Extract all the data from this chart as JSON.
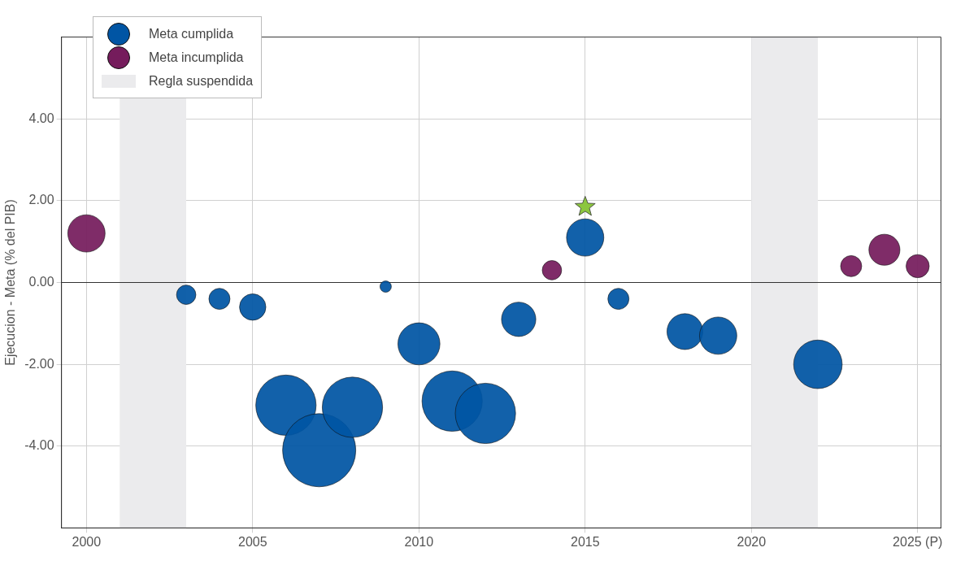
{
  "chart_data": {
    "type": "bubble",
    "ylabel": "Ejecucion - Meta (% del PIB)",
    "xlim": [
      1999.25,
      2025.7
    ],
    "xticks": [
      2000,
      2005,
      2010,
      2015,
      2020,
      {
        "value": 2025,
        "label": "2025 (P)"
      }
    ],
    "ylim": [
      -6,
      6
    ],
    "yticks": [
      {
        "value": -4,
        "label": "-4.00"
      },
      {
        "value": -2,
        "label": "-2.00"
      },
      {
        "value": 0,
        "label": "0.00"
      },
      {
        "value": 2,
        "label": "2.00"
      },
      {
        "value": 4,
        "label": "4.00"
      }
    ],
    "grid": true,
    "legend": "top left",
    "ref_lines": [
      {
        "axis": "y",
        "value": 0,
        "color": "#333333"
      }
    ],
    "bands": [
      {
        "axis": "x",
        "from": 2001,
        "to": 2003,
        "label": "Regla suspendida",
        "color": "#ebebed"
      },
      {
        "axis": "x",
        "from": 2020,
        "to": 2022,
        "color": "#ebebed"
      }
    ],
    "series": [
      {
        "name": "Meta cumplida",
        "color": "#0055a4",
        "x": [
          2003,
          2004,
          2005,
          2006,
          2007,
          2008,
          2009,
          2010,
          2011,
          2012,
          2013,
          2015,
          2016,
          2018,
          2019,
          2022
        ],
        "values": [
          -0.3,
          -0.4,
          -0.6,
          -3.0,
          -4.1,
          -3.05,
          -0.1,
          -1.5,
          -2.9,
          -3.2,
          -0.9,
          1.1,
          -0.4,
          -1.2,
          -1.3,
          -2.0
        ],
        "sizes": [
          0.07,
          0.083,
          0.13,
          0.68,
          1,
          0.68,
          0.024,
          0.33,
          0.68,
          0.68,
          0.22,
          0.26,
          0.083,
          0.24,
          0.26,
          0.44
        ]
      },
      {
        "name": "Meta incumplida",
        "color": "#751c5c",
        "x": [
          2000,
          2014,
          2023,
          2024,
          2025
        ],
        "values": [
          1.2,
          0.3,
          0.4,
          0.8,
          0.4
        ],
        "sizes": [
          0.26,
          0.07,
          0.083,
          0.18,
          0.1
        ]
      },
      {
        "type": "scatter",
        "marker": "star",
        "color": "#8cc63f",
        "x": [
          2015
        ],
        "values": [
          1.85
        ]
      }
    ]
  }
}
